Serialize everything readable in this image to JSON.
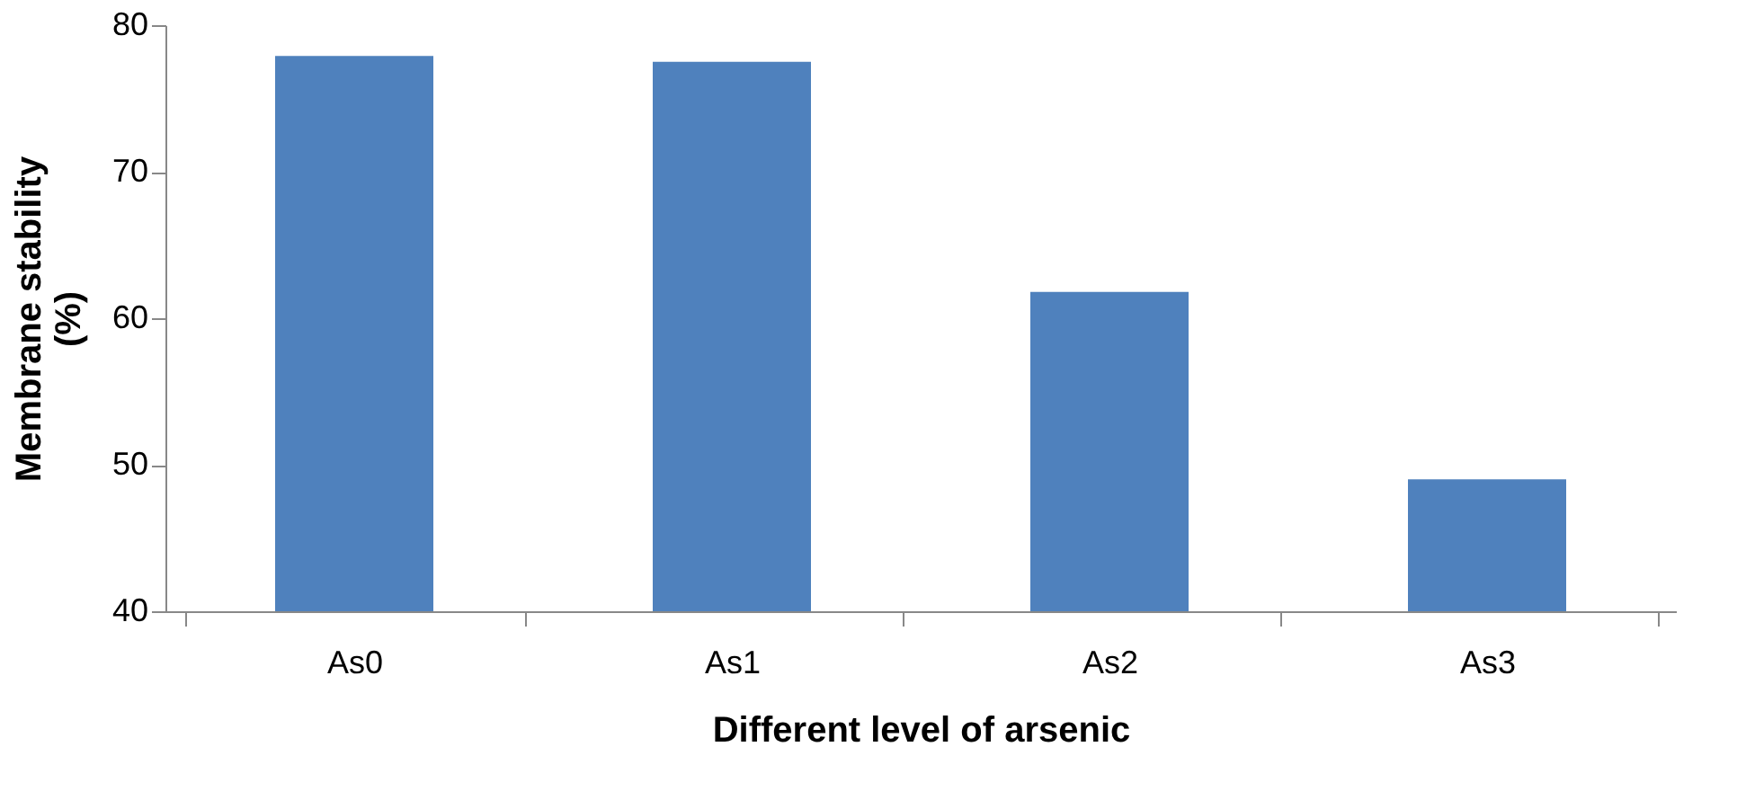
{
  "chart_data": {
    "type": "bar",
    "xlabel": "Different level of arsenic",
    "ylabel": "Membrane stability\n(%)",
    "categories": [
      "As0",
      "As1",
      "As2",
      "As3"
    ],
    "values": [
      77.9,
      77.5,
      61.8,
      49.0
    ],
    "color": "#4f81bd",
    "ylim": [
      40,
      80
    ],
    "yticks": [
      40,
      50,
      60,
      70,
      80
    ],
    "grid": false
  }
}
